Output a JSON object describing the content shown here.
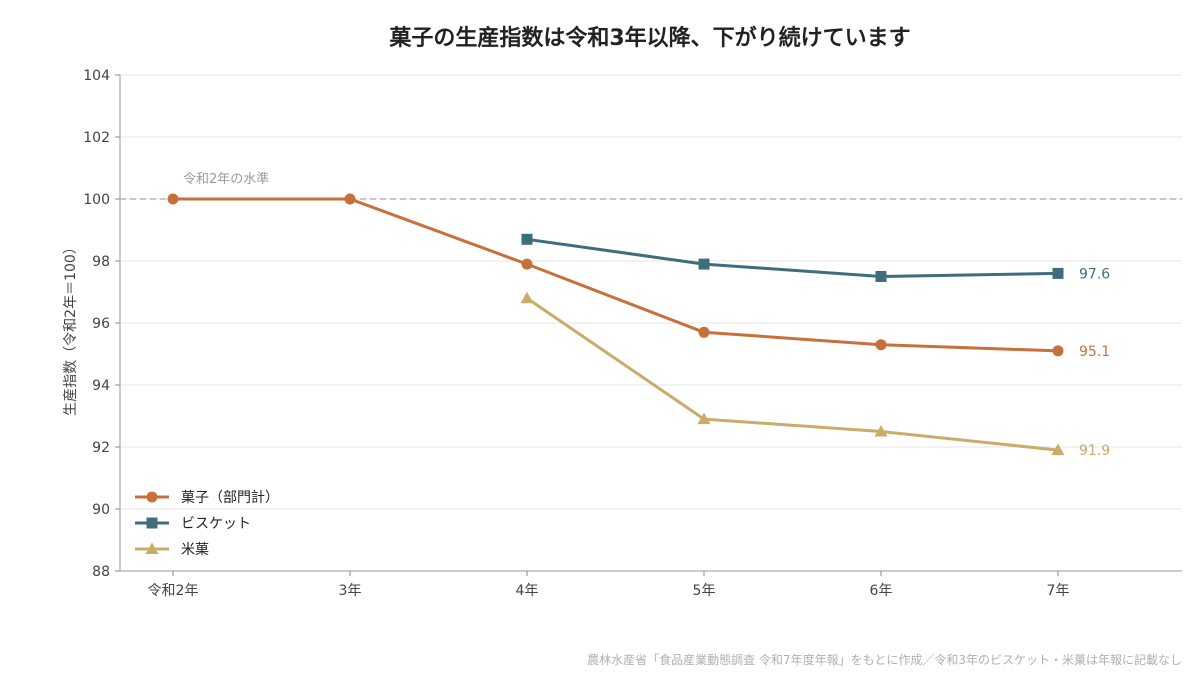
{
  "chart_data": {
    "type": "line",
    "title": "菓子の生産指数は令和3年以降、下がり続けています",
    "ylabel": "生産指数（令和2年＝100）",
    "xlabel": "",
    "categories": [
      "令和2年",
      "3年",
      "4年",
      "5年",
      "6年",
      "7年"
    ],
    "ylim": [
      88,
      104
    ],
    "yticks": [
      88,
      90,
      92,
      94,
      96,
      98,
      100,
      102,
      104
    ],
    "grid": true,
    "legend_position": "bottom-left",
    "reference_line": {
      "value": 100,
      "label": "令和2年の水準"
    },
    "series": [
      {
        "name": "菓子（部門計）",
        "color": "#c8703a",
        "marker": "circle",
        "values": [
          100.0,
          100.0,
          97.9,
          95.7,
          95.3,
          95.1
        ],
        "end_label": "95.1"
      },
      {
        "name": "ビスケット",
        "color": "#3e6e7e",
        "marker": "square",
        "values": [
          null,
          null,
          98.7,
          97.9,
          97.5,
          97.6
        ],
        "end_label": "97.6"
      },
      {
        "name": "米菓",
        "color": "#c9ac68",
        "marker": "triangle",
        "values": [
          null,
          null,
          96.8,
          92.9,
          92.5,
          91.9
        ],
        "end_label": "91.9"
      }
    ],
    "source_note": "農林水産省「食品産業動態調査 令和7年度年報」をもとに作成／令和3年のビスケット・米菓は年報に記載なし"
  }
}
